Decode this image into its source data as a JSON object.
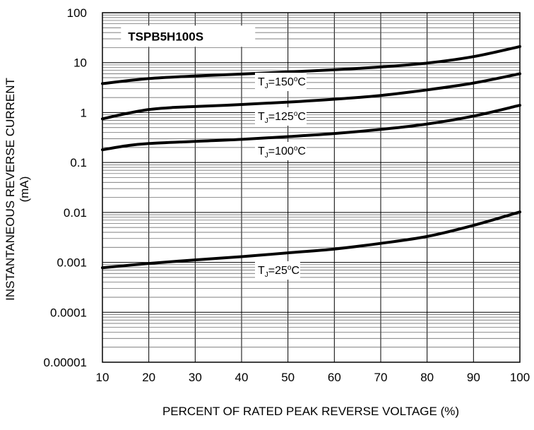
{
  "chart_data": {
    "type": "line",
    "title": "TSPB5H100S",
    "xlabel": "PERCENT OF RATED PEAK REVERSE VOLTAGE (%)",
    "ylabel_line1": "INSTANTANEOUS  REVERSE CURRENT",
    "ylabel_line2": "(mA)",
    "xlim": [
      10,
      100
    ],
    "ylim": [
      1e-05,
      100
    ],
    "yscale": "log",
    "grid": true,
    "x_ticks": [
      10,
      20,
      30,
      40,
      50,
      60,
      70,
      80,
      90,
      100
    ],
    "x_tick_labels": [
      "10",
      "20",
      "30",
      "40",
      "50",
      "60",
      "70",
      "80",
      "90",
      "100"
    ],
    "y_ticks": [
      1e-05,
      0.0001,
      0.001,
      0.01,
      0.1,
      1,
      10,
      100
    ],
    "y_tick_labels": [
      "0.00001",
      "0.0001",
      "0.001",
      "0.01",
      "0.1",
      "1",
      "10",
      "100"
    ],
    "series": [
      {
        "label_main": "T",
        "label_sub": "J",
        "label_eq": "=150",
        "label_sup": "o",
        "label_unit": "C",
        "x": [
          10,
          20,
          30,
          40,
          50,
          60,
          70,
          80,
          90,
          100
        ],
        "values": [
          3.8,
          4.8,
          5.4,
          5.9,
          6.5,
          7.2,
          8.2,
          9.8,
          13.2,
          21
        ]
      },
      {
        "label_main": "T",
        "label_sub": "J",
        "label_eq": "=125",
        "label_sup": "o",
        "label_unit": "C",
        "x": [
          10,
          15,
          20,
          25,
          30,
          40,
          50,
          60,
          70,
          80,
          90,
          100
        ],
        "values": [
          0.75,
          0.95,
          1.15,
          1.26,
          1.32,
          1.45,
          1.62,
          1.85,
          2.2,
          2.85,
          3.9,
          6.0
        ]
      },
      {
        "label_main": "T",
        "label_sub": "J",
        "label_eq": "=100",
        "label_sup": "o",
        "label_unit": "C",
        "x": [
          10,
          15,
          20,
          30,
          40,
          50,
          60,
          70,
          80,
          90,
          100
        ],
        "values": [
          0.18,
          0.215,
          0.24,
          0.265,
          0.29,
          0.33,
          0.38,
          0.46,
          0.59,
          0.85,
          1.4
        ]
      },
      {
        "label_main": "T",
        "label_sub": "J",
        "label_eq": "=25",
        "label_sup": "o",
        "label_unit": "C",
        "x": [
          10,
          20,
          30,
          40,
          50,
          60,
          70,
          80,
          90,
          100
        ],
        "values": [
          0.00078,
          0.00095,
          0.00112,
          0.0013,
          0.00155,
          0.00185,
          0.0024,
          0.0033,
          0.0055,
          0.0102
        ]
      }
    ]
  }
}
